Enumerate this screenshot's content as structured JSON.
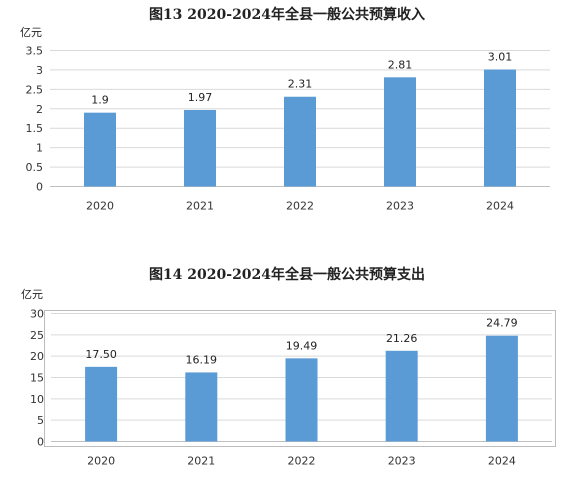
{
  "chart_data": [
    {
      "type": "bar",
      "title": "图13    2020-2024年全县一般公共预算收入",
      "ylabel": "亿元",
      "categories": [
        "2020",
        "2021",
        "2022",
        "2023",
        "2024"
      ],
      "values": [
        1.9,
        1.97,
        2.31,
        2.81,
        3.01
      ],
      "value_labels": [
        "1.9",
        "1.97",
        "2.31",
        "2.81",
        "3.01"
      ],
      "yticks": [
        "0",
        "0.5",
        "1",
        "1.5",
        "2",
        "2.5",
        "3",
        "3.5"
      ],
      "ylim": [
        0,
        3.5
      ],
      "grid": true,
      "bar_color": "#5b9bd5"
    },
    {
      "type": "bar",
      "title": "图14    2020-2024年全县一般公共预算支出",
      "ylabel": "亿元",
      "categories": [
        "2020",
        "2021",
        "2022",
        "2023",
        "2024"
      ],
      "values": [
        17.5,
        16.19,
        19.49,
        21.26,
        24.79
      ],
      "value_labels": [
        "17.50",
        "16.19",
        "19.49",
        "21.26",
        "24.79"
      ],
      "yticks": [
        "0",
        "5",
        "10",
        "15",
        "20",
        "25",
        "30"
      ],
      "ylim": [
        0,
        30
      ],
      "grid": true,
      "bar_color": "#5b9bd5"
    }
  ]
}
